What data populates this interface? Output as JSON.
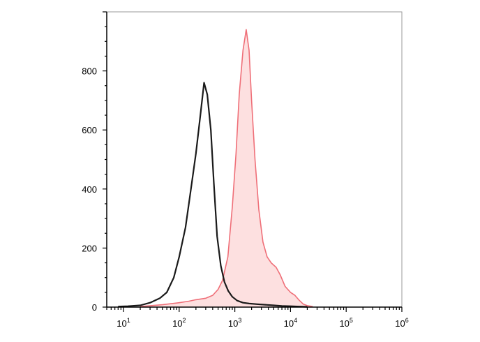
{
  "chart_data": {
    "type": "area",
    "title": "",
    "xlabel": "",
    "ylabel": "",
    "xscale": "log",
    "xlim": [
      5,
      1000000
    ],
    "ylim": [
      0,
      1000
    ],
    "grid": false,
    "legend": "none",
    "x_ticks": [
      {
        "value": 10,
        "base": "10",
        "exp": "1"
      },
      {
        "value": 100,
        "base": "10",
        "exp": "2"
      },
      {
        "value": 1000,
        "base": "10",
        "exp": "3"
      },
      {
        "value": 10000,
        "base": "10",
        "exp": "4"
      },
      {
        "value": 100000,
        "base": "10",
        "exp": "5"
      },
      {
        "value": 1000000,
        "base": "10",
        "exp": "6"
      }
    ],
    "y_ticks": [
      {
        "value": 0,
        "label": "0"
      },
      {
        "value": 200,
        "label": "200"
      },
      {
        "value": 400,
        "label": "400"
      },
      {
        "value": 600,
        "label": "600"
      },
      {
        "value": 800,
        "label": "800"
      }
    ],
    "series": [
      {
        "color": "#1a1a1a",
        "fill": "none",
        "x": [
          8,
          12,
          20,
          30,
          45,
          60,
          80,
          100,
          130,
          160,
          200,
          240,
          280,
          320,
          370,
          420,
          480,
          560,
          650,
          760,
          900,
          1100,
          1400,
          1800,
          2500,
          3500,
          5000,
          7000,
          10000,
          14000,
          20000
        ],
        "y": [
          2,
          3,
          6,
          15,
          30,
          50,
          100,
          170,
          270,
          390,
          520,
          650,
          760,
          720,
          600,
          420,
          240,
          140,
          85,
          55,
          35,
          22,
          15,
          12,
          10,
          8,
          6,
          4,
          3,
          2,
          1
        ]
      },
      {
        "color": "#ef6f78",
        "fill": "#fde0e0",
        "x": [
          20,
          50,
          100,
          150,
          200,
          300,
          400,
          500,
          600,
          750,
          900,
          1050,
          1200,
          1400,
          1600,
          1800,
          2000,
          2300,
          2700,
          3200,
          3800,
          4500,
          5500,
          6500,
          8000,
          10000,
          12000,
          14000,
          17000,
          20000,
          25000
        ],
        "y": [
          2,
          8,
          15,
          20,
          25,
          30,
          40,
          60,
          90,
          170,
          340,
          520,
          720,
          870,
          940,
          870,
          700,
          500,
          330,
          220,
          170,
          150,
          135,
          110,
          70,
          50,
          40,
          25,
          10,
          5,
          2
        ]
      }
    ]
  }
}
